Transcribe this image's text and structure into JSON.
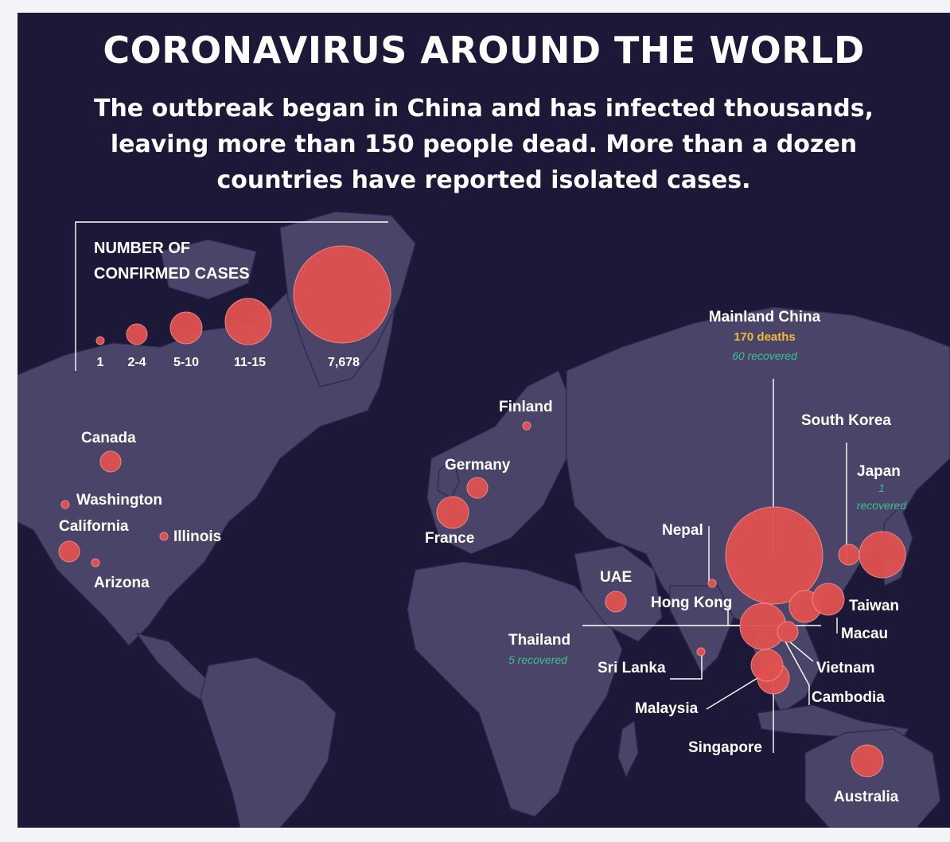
{
  "title": "CORONAVIRUS AROUND THE WORLD",
  "subtitle_lines": [
    "The outbreak began in China and has infected thousands,",
    "leaving more than 150 people dead. More than a dozen",
    "countries have reported isolated cases."
  ],
  "colors": {
    "background": "#1c1838",
    "land": "#4a4468",
    "bubble": "#e0514f",
    "deaths_text": "#f2b93a",
    "recovered_text": "#3fc08a"
  },
  "legend": {
    "title_lines": [
      "NUMBER OF",
      "CONFIRMED CASES"
    ],
    "bins": [
      "1",
      "2-4",
      "5-10",
      "11-15",
      "7,678"
    ]
  },
  "locations": [
    {
      "name": "Canada",
      "size_bin": "2-4"
    },
    {
      "name": "Washington",
      "size_bin": "1"
    },
    {
      "name": "California",
      "size_bin": "2-4"
    },
    {
      "name": "Illinois",
      "size_bin": "1"
    },
    {
      "name": "Arizona",
      "size_bin": "1"
    },
    {
      "name": "Finland",
      "size_bin": "1"
    },
    {
      "name": "Germany",
      "size_bin": "2-4"
    },
    {
      "name": "France",
      "size_bin": "5-10"
    },
    {
      "name": "UAE",
      "size_bin": "2-4"
    },
    {
      "name": "Nepal",
      "size_bin": "1"
    },
    {
      "name": "Sri Lanka",
      "size_bin": "1"
    },
    {
      "name": "Mainland China",
      "size_bin": "7,678",
      "deaths": "170 deaths",
      "recovered": "60 recovered"
    },
    {
      "name": "South Korea",
      "size_bin": "2-4"
    },
    {
      "name": "Japan",
      "size_bin": "11-15",
      "recovered_lines": [
        "1",
        "recovered"
      ]
    },
    {
      "name": "Hong Kong",
      "size_bin": "5-10"
    },
    {
      "name": "Taiwan",
      "size_bin": "5-10"
    },
    {
      "name": "Macau",
      "size_bin": "5-10"
    },
    {
      "name": "Thailand",
      "size_bin": "11-15",
      "recovered": "5 recovered"
    },
    {
      "name": "Vietnam",
      "size_bin": "2-4"
    },
    {
      "name": "Cambodia",
      "size_bin": "1"
    },
    {
      "name": "Malaysia",
      "size_bin": "5-10"
    },
    {
      "name": "Singapore",
      "size_bin": "5-10"
    },
    {
      "name": "Australia",
      "size_bin": "5-10"
    }
  ]
}
